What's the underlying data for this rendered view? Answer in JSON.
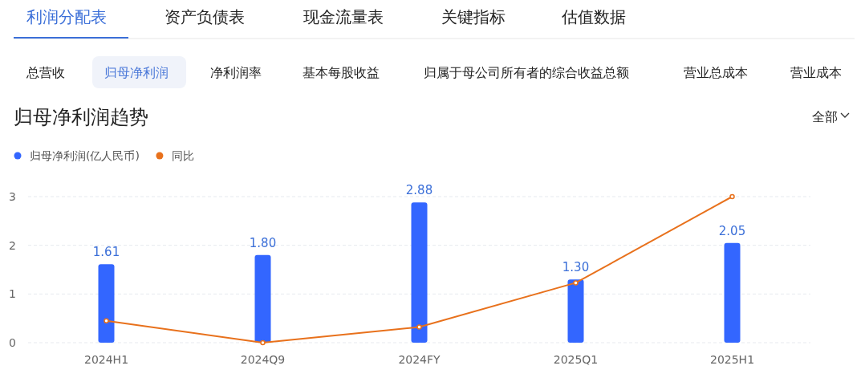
{
  "chart_data": {
    "type": "bar",
    "title": "归母净利润趋势",
    "annotations": [
      "利润分配表",
      "资产负债表",
      "现金流量表",
      "关键指标",
      "估值数据",
      "总营收",
      "归母净利润",
      "净利润率",
      "基本每股收益",
      "归属于母公司所有者的综合收益总额",
      "营业总成本",
      "营业成本",
      "全部"
    ],
    "categories": [
      "2024H1",
      "2024Q9",
      "2024FY",
      "2025Q1",
      "2025H1"
    ],
    "series": [
      {
        "name": "归母净利润(亿人民币)",
        "color": "#3366ff",
        "values": [
          1.61,
          1.8,
          2.88,
          1.3,
          2.05
        ],
        "value_labels": [
          "1.61",
          "1.80",
          "2.88",
          "1.30",
          "2.05"
        ]
      },
      {
        "name": "同比",
        "type": "line",
        "color": "#e8711c",
        "values": [
          0.45,
          0,
          0.32,
          1.23,
          3.0
        ]
      }
    ],
    "ylim": [
      0,
      3
    ],
    "yticks": [
      0,
      1,
      2,
      3
    ],
    "grid": "y",
    "legend": "top left",
    "marker": "circle",
    "line_style": "solid"
  }
}
